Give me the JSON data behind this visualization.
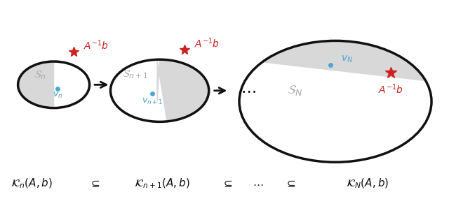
{
  "fig_width": 6.4,
  "fig_height": 2.85,
  "bg_color": "#ffffff",
  "gray_fill": "#d8d8d8",
  "circle_edge": "#111111",
  "circle_lw": 2.5,
  "dot_color": "#4da6d4",
  "star_color": "#cc2222",
  "label_color_S": "#aaaaaa",
  "label_color_v": "#4da6d4",
  "label_color_Ainvb": "#cc2222",
  "bottom_text_color": "#111111",
  "arrow_color": "#111111"
}
